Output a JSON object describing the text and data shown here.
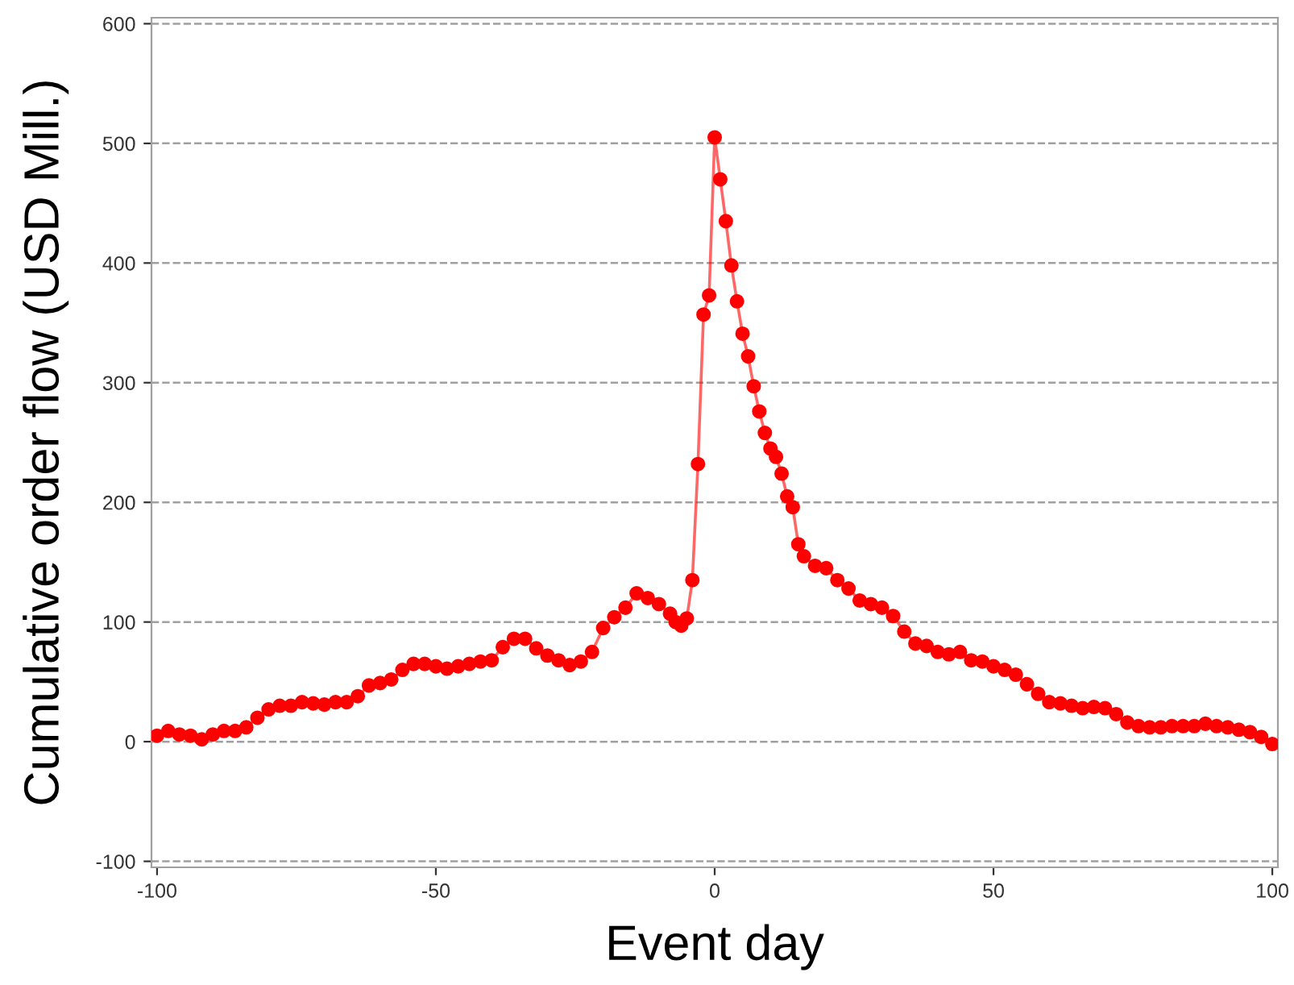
{
  "chart_data": {
    "type": "line",
    "xlabel": "Event day",
    "ylabel": "Cumulative order flow (USD Mill.)",
    "x": [
      -100,
      -98,
      -96,
      -94,
      -92,
      -90,
      -88,
      -86,
      -84,
      -82,
      -80,
      -78,
      -76,
      -74,
      -72,
      -70,
      -68,
      -66,
      -64,
      -62,
      -60,
      -58,
      -56,
      -54,
      -52,
      -50,
      -48,
      -46,
      -44,
      -42,
      -40,
      -38,
      -36,
      -34,
      -32,
      -30,
      -28,
      -26,
      -24,
      -22,
      -20,
      -18,
      -16,
      -14,
      -12,
      -10,
      -8,
      -7,
      -6,
      -5,
      -4,
      -3,
      -2,
      -1,
      0,
      1,
      2,
      3,
      4,
      5,
      6,
      7,
      8,
      9,
      10,
      11,
      12,
      13,
      14,
      15,
      16,
      18,
      20,
      22,
      24,
      26,
      28,
      30,
      32,
      34,
      36,
      38,
      40,
      42,
      44,
      46,
      48,
      50,
      52,
      54,
      56,
      58,
      60,
      62,
      64,
      66,
      68,
      70,
      72,
      74,
      76,
      78,
      80,
      82,
      84,
      86,
      88,
      90,
      92,
      94,
      96,
      98,
      100
    ],
    "series": [
      {
        "color": "#ff0000",
        "values": [
          5,
          9,
          6,
          5,
          2,
          6,
          9,
          9,
          12,
          20,
          27,
          30,
          30,
          33,
          32,
          31,
          33,
          33,
          38,
          47,
          49,
          52,
          60,
          65,
          65,
          63,
          61,
          63,
          65,
          67,
          68,
          79,
          86,
          86,
          78,
          72,
          68,
          64,
          67,
          75,
          95,
          104,
          112,
          124,
          120,
          115,
          107,
          100,
          97,
          103,
          135,
          232,
          357,
          373,
          505,
          470,
          435,
          398,
          368,
          341,
          322,
          297,
          276,
          258,
          245,
          238,
          224,
          205,
          196,
          165,
          155,
          147,
          145,
          135,
          128,
          118,
          115,
          112,
          105,
          92,
          82,
          80,
          75,
          73,
          75,
          68,
          67,
          63,
          60,
          56,
          48,
          40,
          33,
          32,
          30,
          28,
          29,
          28,
          23,
          16,
          13,
          12,
          12,
          13,
          13,
          13,
          15,
          13,
          12,
          10,
          8,
          4,
          -2
        ]
      }
    ],
    "xlim": [
      -101,
      101
    ],
    "xticks": [
      -100,
      -50,
      0,
      50,
      100
    ],
    "ylim": [
      -105,
      605
    ],
    "yticks": [
      -100,
      0,
      100,
      200,
      300,
      400,
      500,
      600
    ],
    "grid": "y",
    "marker": "circle",
    "line_style": "solid",
    "legend": false
  }
}
